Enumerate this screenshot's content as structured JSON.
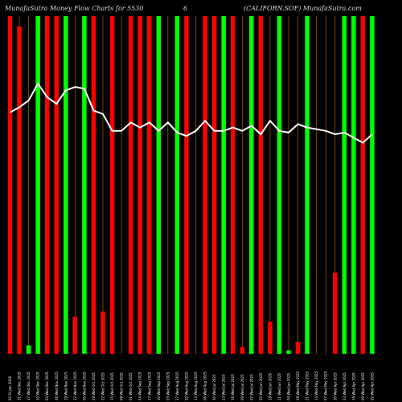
{
  "chart_data": {
    "type": "bar",
    "title_left": "MunafaSutra  Money Flow  Charts for 5530",
    "title_mid": "6",
    "title_right": "(CALIFORN.SOF) MunafaSutra.com",
    "ylim": [
      0,
      100
    ],
    "categories": [
      "02 Fri Jan 2026",
      "31 Wed Dec 2025",
      "17 Wed Dec 2025",
      "10 Wed Dec 2025",
      "03 Wed Dec 2025",
      "26 Wed Nov 2025",
      "19 Wed Nov 2025",
      "12 Wed Nov 2025",
      "05 Wed Nov 2025",
      "29 Wed Oct 2025",
      "22 Wed Oct 2025",
      "15 Wed Oct 2025",
      "08 Wed Oct 2025",
      "01 Wed Oct 2025",
      "24 Wed Sep 2025",
      "17 Wed Sep 2025",
      "10 Wed Sep 2025",
      "03 Wed Sep 2025",
      "27 Wed Aug 2025",
      "20 Wed Aug 2025",
      "13 Wed Aug 2025",
      "06 Wed Aug 2025",
      "30 Wed Jul 2025",
      "23 Wed Jul 2025",
      "16 Wed Jul 2025",
      "09 Wed Jul 2025",
      "02 Wed Jul 2025",
      "25 Wed Jun 2025",
      "18 Wed Jun 2025",
      "11 Wed Jun 2025",
      "04 Wed Jun 2025",
      "28 Wed May 2025",
      "21 Wed May 2025",
      "14 Wed May 2025",
      "07 Wed May 2025",
      "30 Wed Apr 2025",
      "23 Wed Apr 2025",
      "16 Wed Apr 2025",
      "09 Wed Apr 2025",
      "02 Wed Apr 2025"
    ],
    "series": [
      {
        "values": [
          100,
          97,
          2.5,
          100,
          100,
          100,
          100,
          11,
          100,
          100,
          12.5,
          100,
          0,
          100,
          100,
          100,
          100,
          0,
          100,
          100,
          0,
          100,
          100,
          100,
          100,
          2,
          100,
          100,
          9.5,
          100,
          1,
          3.5,
          100,
          0,
          0,
          24,
          100,
          100,
          100,
          100
        ],
        "colors": [
          "red",
          "red",
          "green",
          "green",
          "red",
          "red",
          "green",
          "red",
          "green",
          "red",
          "red",
          "red",
          "green",
          "red",
          "red",
          "red",
          "green",
          "red",
          "green",
          "red",
          "green",
          "red",
          "red",
          "green",
          "red",
          "red",
          "green",
          "red",
          "red",
          "green",
          "green",
          "red",
          "green",
          "red",
          "red",
          "red",
          "green",
          "green",
          "red",
          "green"
        ]
      },
      {
        "values": [
          71.5,
          73,
          75,
          80,
          76,
          74,
          78,
          79,
          78.5,
          72,
          71,
          66,
          66,
          68.5,
          67,
          68.5,
          66,
          68.5,
          65.5,
          64.5,
          66,
          69,
          66,
          66,
          67,
          66,
          67.5,
          65,
          69,
          66,
          65.5,
          68,
          67,
          66.5,
          66,
          65,
          65.5,
          64,
          62.5,
          65
        ]
      }
    ]
  },
  "colors": {
    "up": "#00ff00",
    "down": "#ff0000",
    "grid": "#c06a1a",
    "line": "#ffffff",
    "background": "#000000"
  }
}
